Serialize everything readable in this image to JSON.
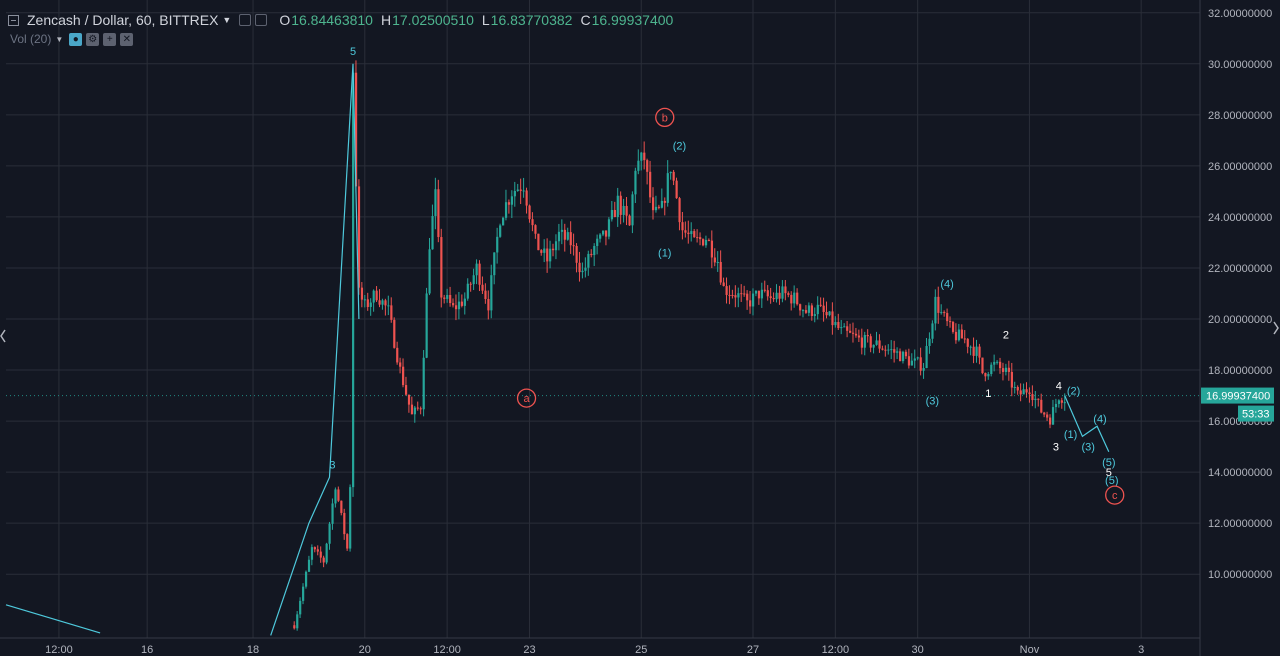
{
  "legend": {
    "symbol": "Zencash / Dollar, 60, BITTREX",
    "open_label": "O",
    "open": "16.84463810",
    "high_label": "H",
    "high": "17.02500510",
    "low_label": "L",
    "low": "16.83770382",
    "close_label": "C",
    "close": "16.99937400",
    "volume_label": "Vol (20)"
  },
  "price_badge": {
    "value": "16.99937400",
    "countdown": "53:33"
  },
  "chart_data": {
    "type": "candlestick",
    "x_unit": "hours",
    "ylim": [
      7.5,
      32.5
    ],
    "yticks": [
      10,
      12,
      14,
      16,
      18,
      20,
      22,
      24,
      26,
      28,
      30,
      32
    ],
    "ytick_labels": [
      "10.00000000",
      "12.00000000",
      "14.00000000",
      "16.00000000",
      "18.00000000",
      "20.00000000",
      "22.00000000",
      "24.00000000",
      "26.00000000",
      "28.00000000",
      "30.00000000",
      "32.00000000"
    ],
    "xlim": [
      0,
      406
    ],
    "x_ticks": [
      {
        "label": "12:00",
        "x": 18
      },
      {
        "label": "16",
        "x": 48
      },
      {
        "label": "18",
        "x": 84
      },
      {
        "label": "20",
        "x": 122
      },
      {
        "label": "12:00",
        "x": 150
      },
      {
        "label": "23",
        "x": 178
      },
      {
        "label": "25",
        "x": 216
      },
      {
        "label": "27",
        "x": 254
      },
      {
        "label": "12:00",
        "x": 282
      },
      {
        "label": "30",
        "x": 310
      },
      {
        "label": "Nov",
        "x": 348
      },
      {
        "label": "3",
        "x": 386
      }
    ],
    "price_path": [
      [
        98,
        8
      ],
      [
        104,
        11
      ],
      [
        108,
        10.5
      ],
      [
        112,
        13.5
      ],
      [
        116,
        11
      ],
      [
        117,
        13.5
      ],
      [
        118,
        29.8
      ],
      [
        120,
        21
      ],
      [
        122,
        20.5
      ],
      [
        126,
        21
      ],
      [
        130,
        20.3
      ],
      [
        134,
        18
      ],
      [
        138,
        16.2
      ],
      [
        141,
        16.6
      ],
      [
        144,
        23
      ],
      [
        146,
        24.8
      ],
      [
        148,
        21
      ],
      [
        152,
        20.4
      ],
      [
        156,
        20.8
      ],
      [
        160,
        22
      ],
      [
        164,
        20.6
      ],
      [
        168,
        24
      ],
      [
        172,
        25
      ],
      [
        176,
        25.3
      ],
      [
        180,
        23
      ],
      [
        184,
        22.3
      ],
      [
        188,
        23.3
      ],
      [
        192,
        23
      ],
      [
        196,
        21.8
      ],
      [
        200,
        22.8
      ],
      [
        204,
        23.3
      ],
      [
        208,
        24.6
      ],
      [
        212,
        23.6
      ],
      [
        214,
        26
      ],
      [
        217,
        26.3
      ],
      [
        220,
        24
      ],
      [
        223,
        24.3
      ],
      [
        226,
        26
      ],
      [
        230,
        23.5
      ],
      [
        234,
        23
      ],
      [
        238,
        23.2
      ],
      [
        242,
        22.3
      ],
      [
        244,
        21.2
      ],
      [
        248,
        21
      ],
      [
        252,
        20.6
      ],
      [
        256,
        21
      ],
      [
        260,
        20.8
      ],
      [
        264,
        21
      ],
      [
        268,
        20.8
      ],
      [
        272,
        20.3
      ],
      [
        276,
        20.4
      ],
      [
        280,
        20
      ],
      [
        284,
        19.5
      ],
      [
        288,
        19.3
      ],
      [
        292,
        19.1
      ],
      [
        296,
        19
      ],
      [
        300,
        18.8
      ],
      [
        304,
        18.6
      ],
      [
        308,
        18.3
      ],
      [
        312,
        18.2
      ],
      [
        316,
        20.7
      ],
      [
        318,
        20.2
      ],
      [
        322,
        19.4
      ],
      [
        326,
        19.2
      ],
      [
        330,
        18.7
      ],
      [
        332,
        17.9
      ],
      [
        336,
        18.2
      ],
      [
        340,
        17.9
      ],
      [
        344,
        17
      ],
      [
        348,
        17.3
      ],
      [
        352,
        16.4
      ],
      [
        355,
        16.1
      ],
      [
        358,
        17
      ],
      [
        360,
        16.9
      ]
    ],
    "wave_lines": [
      {
        "color": "#4ec9dc",
        "points": [
          [
            0,
            8.8
          ],
          [
            32,
            7.7
          ]
        ]
      },
      {
        "color": "#4ec9dc",
        "points": [
          [
            90,
            7.6
          ],
          [
            103,
            12
          ],
          [
            110,
            13.8
          ],
          [
            118,
            30
          ],
          [
            120,
            20
          ]
        ]
      },
      {
        "color": "#4ec9dc",
        "points": [
          [
            360,
            17
          ],
          [
            366,
            15.4
          ],
          [
            371,
            15.8
          ],
          [
            375,
            14.8
          ]
        ]
      }
    ],
    "annotations": [
      {
        "text": "5",
        "x": 118,
        "y": 30.5,
        "color": "#4ec9dc",
        "circled": false
      },
      {
        "text": "3",
        "x": 111,
        "y": 14.3,
        "color": "#4ec9dc",
        "circled": false
      },
      {
        "text": "a",
        "x": 177,
        "y": 16.9,
        "color": "#ef5350",
        "circled": true
      },
      {
        "text": "b",
        "x": 224,
        "y": 27.9,
        "color": "#ef5350",
        "circled": true
      },
      {
        "text": "(2)",
        "x": 229,
        "y": 26.8,
        "color": "#4ec9dc",
        "circled": false
      },
      {
        "text": "(1)",
        "x": 224,
        "y": 22.6,
        "color": "#4ec9dc",
        "circled": false
      },
      {
        "text": "(4)",
        "x": 320,
        "y": 21.4,
        "color": "#4ec9dc",
        "circled": false
      },
      {
        "text": "(3)",
        "x": 315,
        "y": 16.8,
        "color": "#4ec9dc",
        "circled": false
      },
      {
        "text": "2",
        "x": 340,
        "y": 19.4,
        "color": "#ffffff",
        "circled": false
      },
      {
        "text": "1",
        "x": 334,
        "y": 17.1,
        "color": "#ffffff",
        "circled": false
      },
      {
        "text": "4",
        "x": 358,
        "y": 17.4,
        "color": "#ffffff",
        "circled": false
      },
      {
        "text": "(2)",
        "x": 363,
        "y": 17.2,
        "color": "#4ec9dc",
        "circled": false
      },
      {
        "text": "3",
        "x": 357,
        "y": 15,
        "color": "#ffffff",
        "circled": false
      },
      {
        "text": "(1)",
        "x": 362,
        "y": 15.5,
        "color": "#4ec9dc",
        "circled": false
      },
      {
        "text": "(4)",
        "x": 372,
        "y": 16.1,
        "color": "#4ec9dc",
        "circled": false
      },
      {
        "text": "(3)",
        "x": 368,
        "y": 15.0,
        "color": "#4ec9dc",
        "circled": false
      },
      {
        "text": "(5)",
        "x": 375,
        "y": 14.4,
        "color": "#4ec9dc",
        "circled": false
      },
      {
        "text": "5",
        "x": 375,
        "y": 14.0,
        "color": "#ffffff",
        "circled": false
      },
      {
        "text": "(5)",
        "x": 376,
        "y": 13.7,
        "color": "#4ec9dc",
        "circled": false
      },
      {
        "text": "c",
        "x": 377,
        "y": 13.1,
        "color": "#ef5350",
        "circled": true
      }
    ],
    "colors": {
      "up": "#26a69a",
      "down": "#ef5350",
      "wave": "#4ec9dc",
      "grid": "#2a2e39",
      "price_line": "#26a69a",
      "bg": "#131722"
    }
  }
}
